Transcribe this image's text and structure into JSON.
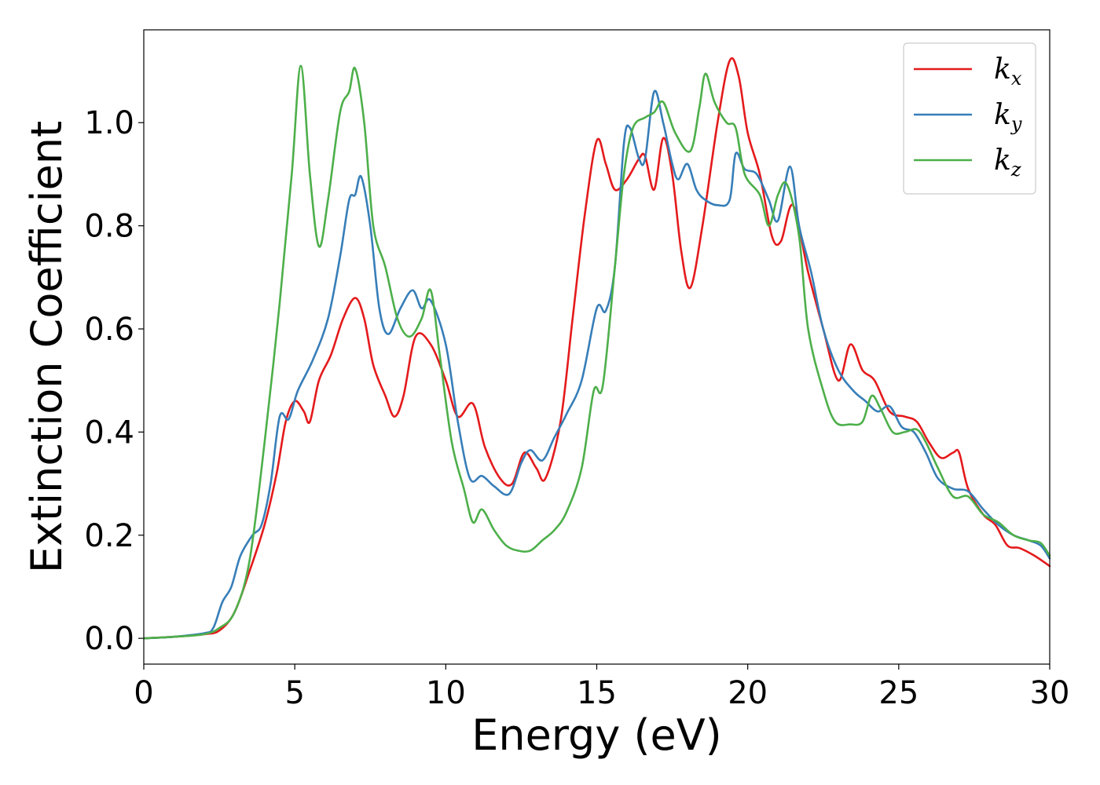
{
  "chart_data": {
    "type": "line",
    "title": "",
    "xlabel": "Energy (eV)",
    "ylabel": "Extinction Coefficient",
    "xlim": [
      0,
      30
    ],
    "ylim": [
      -0.05,
      1.18
    ],
    "x_ticks": [
      0,
      5,
      10,
      15,
      20,
      25,
      30
    ],
    "x_tick_labels": [
      "0",
      "5",
      "10",
      "15",
      "20",
      "25",
      "30"
    ],
    "y_ticks": [
      0.0,
      0.2,
      0.4,
      0.6,
      0.8,
      1.0
    ],
    "y_tick_labels": [
      "0.0",
      "0.2",
      "0.4",
      "0.6",
      "0.8",
      "1.0"
    ],
    "grid": false,
    "legend_position": "top-right",
    "series": [
      {
        "name": "k_x",
        "legend_base": "k",
        "legend_sub": "x",
        "color": "#e41a1c",
        "points": [
          [
            0,
            0
          ],
          [
            1,
            0.003
          ],
          [
            2,
            0.008
          ],
          [
            2.5,
            0.015
          ],
          [
            3,
            0.05
          ],
          [
            3.5,
            0.13
          ],
          [
            4,
            0.22
          ],
          [
            4.4,
            0.32
          ],
          [
            4.7,
            0.42
          ],
          [
            5,
            0.46
          ],
          [
            5.3,
            0.44
          ],
          [
            5.5,
            0.42
          ],
          [
            5.8,
            0.5
          ],
          [
            6.2,
            0.55
          ],
          [
            6.6,
            0.62
          ],
          [
            7,
            0.66
          ],
          [
            7.3,
            0.62
          ],
          [
            7.6,
            0.53
          ],
          [
            8,
            0.47
          ],
          [
            8.3,
            0.43
          ],
          [
            8.6,
            0.47
          ],
          [
            9,
            0.585
          ],
          [
            9.5,
            0.57
          ],
          [
            10,
            0.5
          ],
          [
            10.4,
            0.43
          ],
          [
            10.9,
            0.455
          ],
          [
            11.3,
            0.37
          ],
          [
            11.8,
            0.31
          ],
          [
            12.2,
            0.3
          ],
          [
            12.6,
            0.36
          ],
          [
            13,
            0.33
          ],
          [
            13.3,
            0.31
          ],
          [
            13.8,
            0.42
          ],
          [
            14.2,
            0.62
          ],
          [
            14.6,
            0.82
          ],
          [
            15,
            0.965
          ],
          [
            15.3,
            0.92
          ],
          [
            15.6,
            0.87
          ],
          [
            16,
            0.89
          ],
          [
            16.4,
            0.93
          ],
          [
            16.6,
            0.935
          ],
          [
            16.9,
            0.87
          ],
          [
            17.2,
            0.97
          ],
          [
            17.5,
            0.9
          ],
          [
            17.8,
            0.75
          ],
          [
            18.1,
            0.68
          ],
          [
            18.5,
            0.8
          ],
          [
            19,
            1.0
          ],
          [
            19.4,
            1.12
          ],
          [
            19.7,
            1.09
          ],
          [
            20,
            0.98
          ],
          [
            20.4,
            0.9
          ],
          [
            20.8,
            0.78
          ],
          [
            21.1,
            0.77
          ],
          [
            21.5,
            0.84
          ],
          [
            22,
            0.71
          ],
          [
            22.5,
            0.6
          ],
          [
            23,
            0.5
          ],
          [
            23.4,
            0.57
          ],
          [
            23.8,
            0.52
          ],
          [
            24.2,
            0.5
          ],
          [
            24.7,
            0.44
          ],
          [
            25.2,
            0.43
          ],
          [
            25.6,
            0.42
          ],
          [
            26,
            0.38
          ],
          [
            26.4,
            0.35
          ],
          [
            26.8,
            0.36
          ],
          [
            27,
            0.36
          ],
          [
            27.3,
            0.29
          ],
          [
            27.8,
            0.24
          ],
          [
            28.2,
            0.22
          ],
          [
            28.6,
            0.18
          ],
          [
            29,
            0.175
          ],
          [
            29.5,
            0.16
          ],
          [
            30,
            0.14
          ]
        ]
      },
      {
        "name": "k_y",
        "legend_base": "k",
        "legend_sub": "y",
        "color": "#377eb8",
        "points": [
          [
            0,
            0
          ],
          [
            1,
            0.003
          ],
          [
            2,
            0.01
          ],
          [
            2.3,
            0.02
          ],
          [
            2.6,
            0.07
          ],
          [
            2.9,
            0.1
          ],
          [
            3.2,
            0.16
          ],
          [
            3.6,
            0.2
          ],
          [
            3.9,
            0.22
          ],
          [
            4.2,
            0.3
          ],
          [
            4.5,
            0.43
          ],
          [
            4.8,
            0.425
          ],
          [
            5.1,
            0.48
          ],
          [
            5.6,
            0.54
          ],
          [
            6.1,
            0.62
          ],
          [
            6.5,
            0.74
          ],
          [
            6.8,
            0.85
          ],
          [
            7,
            0.86
          ],
          [
            7.2,
            0.895
          ],
          [
            7.5,
            0.8
          ],
          [
            7.8,
            0.64
          ],
          [
            8.1,
            0.59
          ],
          [
            8.5,
            0.64
          ],
          [
            8.9,
            0.675
          ],
          [
            9.2,
            0.64
          ],
          [
            9.5,
            0.655
          ],
          [
            10,
            0.57
          ],
          [
            10.4,
            0.42
          ],
          [
            10.8,
            0.31
          ],
          [
            11.2,
            0.315
          ],
          [
            11.6,
            0.295
          ],
          [
            12.1,
            0.28
          ],
          [
            12.5,
            0.34
          ],
          [
            12.8,
            0.365
          ],
          [
            13.2,
            0.345
          ],
          [
            13.6,
            0.39
          ],
          [
            14,
            0.435
          ],
          [
            14.5,
            0.5
          ],
          [
            15,
            0.64
          ],
          [
            15.3,
            0.635
          ],
          [
            15.6,
            0.72
          ],
          [
            15.9,
            0.96
          ],
          [
            16.1,
            0.99
          ],
          [
            16.4,
            0.93
          ],
          [
            16.6,
            0.93
          ],
          [
            16.9,
            1.06
          ],
          [
            17.2,
            1.0
          ],
          [
            17.5,
            0.92
          ],
          [
            17.7,
            0.89
          ],
          [
            18,
            0.92
          ],
          [
            18.3,
            0.87
          ],
          [
            18.6,
            0.85
          ],
          [
            19,
            0.84
          ],
          [
            19.4,
            0.85
          ],
          [
            19.6,
            0.94
          ],
          [
            19.9,
            0.91
          ],
          [
            20.3,
            0.9
          ],
          [
            20.7,
            0.85
          ],
          [
            21,
            0.81
          ],
          [
            21.4,
            0.915
          ],
          [
            21.7,
            0.8
          ],
          [
            22.1,
            0.71
          ],
          [
            22.5,
            0.6
          ],
          [
            23,
            0.52
          ],
          [
            23.5,
            0.48
          ],
          [
            23.9,
            0.46
          ],
          [
            24.3,
            0.44
          ],
          [
            24.7,
            0.45
          ],
          [
            25.1,
            0.41
          ],
          [
            25.5,
            0.4
          ],
          [
            25.9,
            0.36
          ],
          [
            26.3,
            0.31
          ],
          [
            26.8,
            0.29
          ],
          [
            27.3,
            0.285
          ],
          [
            27.8,
            0.25
          ],
          [
            28.3,
            0.22
          ],
          [
            28.8,
            0.2
          ],
          [
            29.3,
            0.19
          ],
          [
            29.7,
            0.18
          ],
          [
            30,
            0.155
          ]
        ]
      },
      {
        "name": "k_z",
        "legend_base": "k",
        "legend_sub": "z",
        "color": "#4daf4a",
        "points": [
          [
            0,
            0
          ],
          [
            1,
            0.003
          ],
          [
            2,
            0.008
          ],
          [
            2.5,
            0.02
          ],
          [
            3,
            0.05
          ],
          [
            3.5,
            0.15
          ],
          [
            4,
            0.38
          ],
          [
            4.5,
            0.65
          ],
          [
            4.9,
            0.9
          ],
          [
            5.2,
            1.11
          ],
          [
            5.5,
            0.9
          ],
          [
            5.8,
            0.76
          ],
          [
            6.1,
            0.85
          ],
          [
            6.5,
            1.02
          ],
          [
            6.8,
            1.06
          ],
          [
            7,
            1.105
          ],
          [
            7.3,
            1.0
          ],
          [
            7.6,
            0.8
          ],
          [
            8,
            0.72
          ],
          [
            8.4,
            0.62
          ],
          [
            8.8,
            0.585
          ],
          [
            9.2,
            0.62
          ],
          [
            9.5,
            0.675
          ],
          [
            9.8,
            0.55
          ],
          [
            10.2,
            0.38
          ],
          [
            10.6,
            0.29
          ],
          [
            10.9,
            0.225
          ],
          [
            11.2,
            0.25
          ],
          [
            11.6,
            0.21
          ],
          [
            12,
            0.18
          ],
          [
            12.4,
            0.17
          ],
          [
            12.8,
            0.17
          ],
          [
            13.2,
            0.19
          ],
          [
            13.6,
            0.21
          ],
          [
            14,
            0.245
          ],
          [
            14.5,
            0.33
          ],
          [
            14.9,
            0.48
          ],
          [
            15.2,
            0.49
          ],
          [
            15.6,
            0.72
          ],
          [
            15.9,
            0.9
          ],
          [
            16.2,
            0.99
          ],
          [
            16.6,
            1.01
          ],
          [
            16.9,
            1.02
          ],
          [
            17.2,
            1.04
          ],
          [
            17.6,
            0.98
          ],
          [
            18.1,
            0.945
          ],
          [
            18.4,
            1.03
          ],
          [
            18.6,
            1.095
          ],
          [
            18.9,
            1.04
          ],
          [
            19.3,
            1.0
          ],
          [
            19.6,
            0.99
          ],
          [
            19.9,
            0.9
          ],
          [
            20.4,
            0.86
          ],
          [
            20.7,
            0.8
          ],
          [
            21,
            0.86
          ],
          [
            21.3,
            0.88
          ],
          [
            21.7,
            0.78
          ],
          [
            22,
            0.6
          ],
          [
            22.5,
            0.48
          ],
          [
            22.9,
            0.42
          ],
          [
            23.4,
            0.415
          ],
          [
            23.8,
            0.42
          ],
          [
            24.1,
            0.47
          ],
          [
            24.4,
            0.445
          ],
          [
            24.8,
            0.4
          ],
          [
            25.2,
            0.4
          ],
          [
            25.6,
            0.405
          ],
          [
            25.9,
            0.38
          ],
          [
            26.3,
            0.33
          ],
          [
            26.8,
            0.275
          ],
          [
            27.3,
            0.275
          ],
          [
            27.8,
            0.24
          ],
          [
            28.3,
            0.225
          ],
          [
            28.8,
            0.2
          ],
          [
            29.3,
            0.19
          ],
          [
            29.7,
            0.185
          ],
          [
            30,
            0.16
          ]
        ]
      }
    ]
  }
}
